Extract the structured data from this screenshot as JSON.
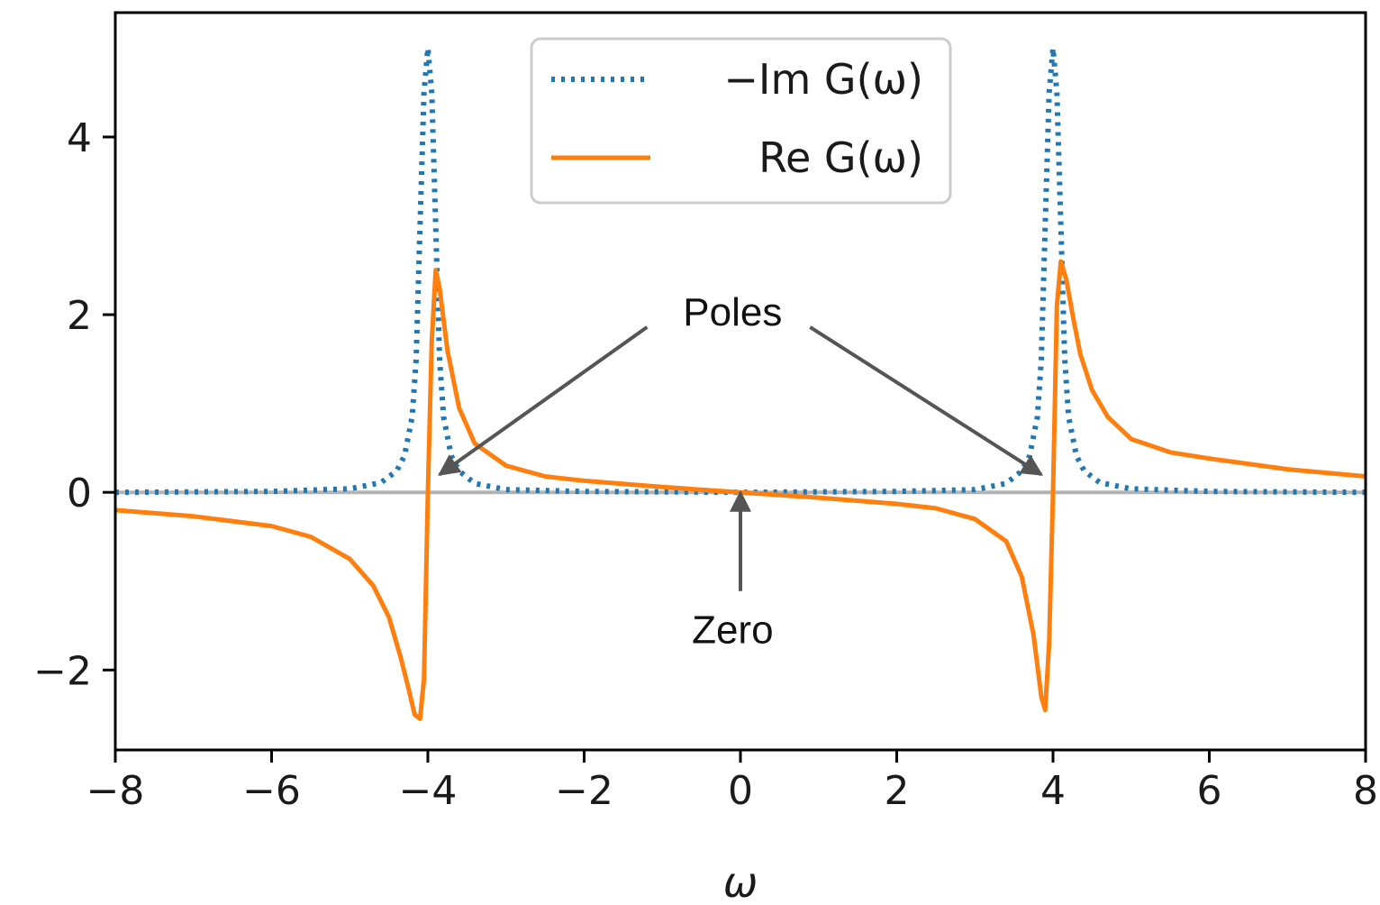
{
  "chart_data": {
    "type": "line",
    "title": "",
    "xlabel": "ω",
    "ylabel": "",
    "xlim": [
      -8,
      8
    ],
    "ylim": [
      -2.9,
      5.4
    ],
    "xticks": [
      -8,
      -6,
      -4,
      -2,
      0,
      2,
      4,
      6,
      8
    ],
    "xtick_labels": [
      "−8",
      "−6",
      "−4",
      "−2",
      "0",
      "2",
      "4",
      "6",
      "8"
    ],
    "yticks": [
      -2,
      0,
      2,
      4
    ],
    "ytick_labels": [
      "−2",
      "0",
      "2",
      "4"
    ],
    "grid": false,
    "legend_position": "top-center",
    "reference_line": {
      "y": 0,
      "color": "#b3b3b3"
    },
    "series": [
      {
        "name": "−Im G(ω)",
        "style": "dotted",
        "color": "#1f77b4",
        "x": [
          -8,
          -6,
          -5,
          -4.6,
          -4.4,
          -4.3,
          -4.2,
          -4.15,
          -4.1,
          -4.05,
          -4.0,
          -3.95,
          -3.9,
          -3.85,
          -3.8,
          -3.7,
          -3.6,
          -3.4,
          -3.0,
          -2.0,
          0,
          2,
          3.0,
          3.4,
          3.6,
          3.7,
          3.8,
          3.85,
          3.9,
          3.95,
          4.0,
          4.05,
          4.1,
          4.15,
          4.2,
          4.3,
          4.4,
          4.6,
          5,
          6,
          8
        ],
        "y": [
          0.0,
          0.01,
          0.04,
          0.11,
          0.24,
          0.41,
          0.85,
          1.5,
          3.0,
          4.5,
          5.0,
          4.5,
          3.0,
          1.5,
          0.85,
          0.41,
          0.24,
          0.1,
          0.03,
          0.01,
          0.0,
          0.01,
          0.03,
          0.1,
          0.24,
          0.41,
          0.85,
          1.5,
          3.0,
          4.5,
          5.0,
          4.5,
          3.0,
          1.5,
          0.85,
          0.41,
          0.24,
          0.11,
          0.04,
          0.01,
          0.0
        ]
      },
      {
        "name": "Re G(ω)",
        "style": "solid",
        "color": "#ff7f0e",
        "x": [
          -8,
          -7,
          -6,
          -5.5,
          -5,
          -4.7,
          -4.5,
          -4.35,
          -4.25,
          -4.17,
          -4.1,
          -4.05,
          -4.0,
          -3.95,
          -3.9,
          -3.85,
          -3.75,
          -3.6,
          -3.4,
          -3.0,
          -2.5,
          -2.0,
          -1.0,
          0,
          1.0,
          2.0,
          2.5,
          3.0,
          3.4,
          3.6,
          3.75,
          3.85,
          3.9,
          3.95,
          4.0,
          4.05,
          4.1,
          4.17,
          4.25,
          4.35,
          4.5,
          4.7,
          5,
          5.5,
          6,
          7,
          8
        ],
        "y": [
          -0.2,
          -0.27,
          -0.38,
          -0.5,
          -0.75,
          -1.05,
          -1.4,
          -1.85,
          -2.2,
          -2.5,
          -2.55,
          -2.1,
          0.0,
          1.7,
          2.5,
          2.3,
          1.6,
          0.95,
          0.55,
          0.3,
          0.18,
          0.13,
          0.06,
          0.0,
          -0.06,
          -0.13,
          -0.18,
          -0.3,
          -0.55,
          -0.95,
          -1.6,
          -2.3,
          -2.45,
          -1.7,
          0.0,
          2.1,
          2.6,
          2.4,
          2.0,
          1.55,
          1.15,
          0.85,
          0.6,
          0.45,
          0.38,
          0.26,
          0.18
        ]
      }
    ],
    "annotations": [
      {
        "text": "Poles",
        "targets": [
          [
            -3.85,
            0.2
          ],
          [
            3.85,
            0.2
          ]
        ],
        "text_at": [
          -0.1,
          1.88
        ]
      },
      {
        "text": "Zero",
        "targets": [
          [
            0,
            0.0
          ]
        ],
        "text_at": [
          -0.1,
          -1.7
        ]
      }
    ]
  }
}
